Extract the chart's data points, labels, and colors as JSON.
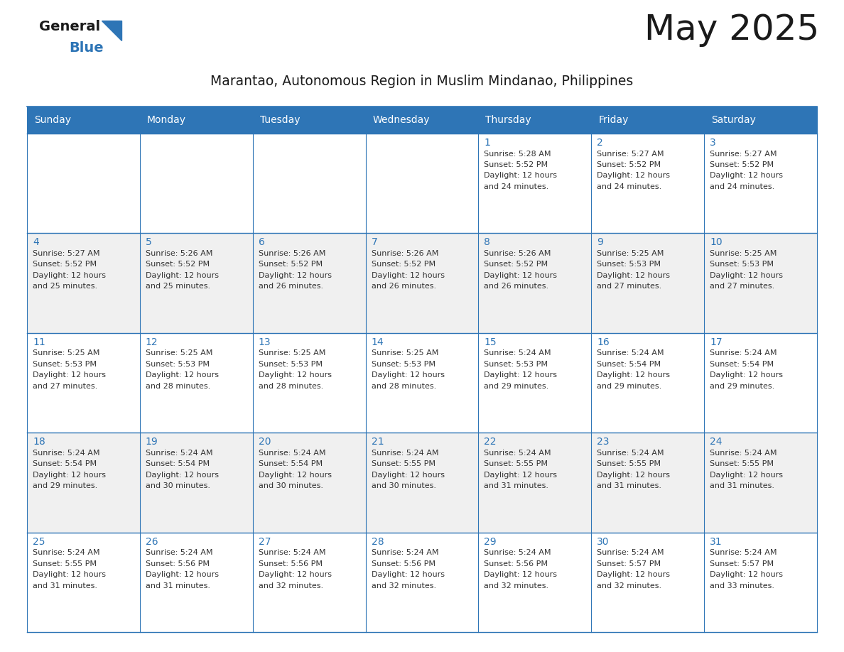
{
  "title": "May 2025",
  "subtitle": "Marantao, Autonomous Region in Muslim Mindanao, Philippines",
  "header_bg_color": "#2E75B6",
  "header_text_color": "#FFFFFF",
  "title_color": "#1a1a1a",
  "subtitle_color": "#1a1a1a",
  "day_number_color": "#2E75B6",
  "cell_text_color": "#333333",
  "grid_line_color": "#2E75B6",
  "row_bg_colors": [
    "#FFFFFF",
    "#F0F0F0"
  ],
  "days_of_week": [
    "Sunday",
    "Monday",
    "Tuesday",
    "Wednesday",
    "Thursday",
    "Friday",
    "Saturday"
  ],
  "weeks": [
    [
      {
        "day": "",
        "sunrise": "",
        "sunset": "",
        "daylight_hours": 0,
        "daylight_mins": 0
      },
      {
        "day": "",
        "sunrise": "",
        "sunset": "",
        "daylight_hours": 0,
        "daylight_mins": 0
      },
      {
        "day": "",
        "sunrise": "",
        "sunset": "",
        "daylight_hours": 0,
        "daylight_mins": 0
      },
      {
        "day": "",
        "sunrise": "",
        "sunset": "",
        "daylight_hours": 0,
        "daylight_mins": 0
      },
      {
        "day": "1",
        "sunrise": "5:28 AM",
        "sunset": "5:52 PM",
        "daylight_hours": 12,
        "daylight_mins": 24
      },
      {
        "day": "2",
        "sunrise": "5:27 AM",
        "sunset": "5:52 PM",
        "daylight_hours": 12,
        "daylight_mins": 24
      },
      {
        "day": "3",
        "sunrise": "5:27 AM",
        "sunset": "5:52 PM",
        "daylight_hours": 12,
        "daylight_mins": 24
      }
    ],
    [
      {
        "day": "4",
        "sunrise": "5:27 AM",
        "sunset": "5:52 PM",
        "daylight_hours": 12,
        "daylight_mins": 25
      },
      {
        "day": "5",
        "sunrise": "5:26 AM",
        "sunset": "5:52 PM",
        "daylight_hours": 12,
        "daylight_mins": 25
      },
      {
        "day": "6",
        "sunrise": "5:26 AM",
        "sunset": "5:52 PM",
        "daylight_hours": 12,
        "daylight_mins": 26
      },
      {
        "day": "7",
        "sunrise": "5:26 AM",
        "sunset": "5:52 PM",
        "daylight_hours": 12,
        "daylight_mins": 26
      },
      {
        "day": "8",
        "sunrise": "5:26 AM",
        "sunset": "5:52 PM",
        "daylight_hours": 12,
        "daylight_mins": 26
      },
      {
        "day": "9",
        "sunrise": "5:25 AM",
        "sunset": "5:53 PM",
        "daylight_hours": 12,
        "daylight_mins": 27
      },
      {
        "day": "10",
        "sunrise": "5:25 AM",
        "sunset": "5:53 PM",
        "daylight_hours": 12,
        "daylight_mins": 27
      }
    ],
    [
      {
        "day": "11",
        "sunrise": "5:25 AM",
        "sunset": "5:53 PM",
        "daylight_hours": 12,
        "daylight_mins": 27
      },
      {
        "day": "12",
        "sunrise": "5:25 AM",
        "sunset": "5:53 PM",
        "daylight_hours": 12,
        "daylight_mins": 28
      },
      {
        "day": "13",
        "sunrise": "5:25 AM",
        "sunset": "5:53 PM",
        "daylight_hours": 12,
        "daylight_mins": 28
      },
      {
        "day": "14",
        "sunrise": "5:25 AM",
        "sunset": "5:53 PM",
        "daylight_hours": 12,
        "daylight_mins": 28
      },
      {
        "day": "15",
        "sunrise": "5:24 AM",
        "sunset": "5:53 PM",
        "daylight_hours": 12,
        "daylight_mins": 29
      },
      {
        "day": "16",
        "sunrise": "5:24 AM",
        "sunset": "5:54 PM",
        "daylight_hours": 12,
        "daylight_mins": 29
      },
      {
        "day": "17",
        "sunrise": "5:24 AM",
        "sunset": "5:54 PM",
        "daylight_hours": 12,
        "daylight_mins": 29
      }
    ],
    [
      {
        "day": "18",
        "sunrise": "5:24 AM",
        "sunset": "5:54 PM",
        "daylight_hours": 12,
        "daylight_mins": 29
      },
      {
        "day": "19",
        "sunrise": "5:24 AM",
        "sunset": "5:54 PM",
        "daylight_hours": 12,
        "daylight_mins": 30
      },
      {
        "day": "20",
        "sunrise": "5:24 AM",
        "sunset": "5:54 PM",
        "daylight_hours": 12,
        "daylight_mins": 30
      },
      {
        "day": "21",
        "sunrise": "5:24 AM",
        "sunset": "5:55 PM",
        "daylight_hours": 12,
        "daylight_mins": 30
      },
      {
        "day": "22",
        "sunrise": "5:24 AM",
        "sunset": "5:55 PM",
        "daylight_hours": 12,
        "daylight_mins": 31
      },
      {
        "day": "23",
        "sunrise": "5:24 AM",
        "sunset": "5:55 PM",
        "daylight_hours": 12,
        "daylight_mins": 31
      },
      {
        "day": "24",
        "sunrise": "5:24 AM",
        "sunset": "5:55 PM",
        "daylight_hours": 12,
        "daylight_mins": 31
      }
    ],
    [
      {
        "day": "25",
        "sunrise": "5:24 AM",
        "sunset": "5:55 PM",
        "daylight_hours": 12,
        "daylight_mins": 31
      },
      {
        "day": "26",
        "sunrise": "5:24 AM",
        "sunset": "5:56 PM",
        "daylight_hours": 12,
        "daylight_mins": 31
      },
      {
        "day": "27",
        "sunrise": "5:24 AM",
        "sunset": "5:56 PM",
        "daylight_hours": 12,
        "daylight_mins": 32
      },
      {
        "day": "28",
        "sunrise": "5:24 AM",
        "sunset": "5:56 PM",
        "daylight_hours": 12,
        "daylight_mins": 32
      },
      {
        "day": "29",
        "sunrise": "5:24 AM",
        "sunset": "5:56 PM",
        "daylight_hours": 12,
        "daylight_mins": 32
      },
      {
        "day": "30",
        "sunrise": "5:24 AM",
        "sunset": "5:57 PM",
        "daylight_hours": 12,
        "daylight_mins": 32
      },
      {
        "day": "31",
        "sunrise": "5:24 AM",
        "sunset": "5:57 PM",
        "daylight_hours": 12,
        "daylight_mins": 33
      }
    ]
  ],
  "logo_general_color": "#1a1a1a",
  "logo_blue_color": "#2E75B6",
  "logo_triangle_color": "#2E75B6"
}
